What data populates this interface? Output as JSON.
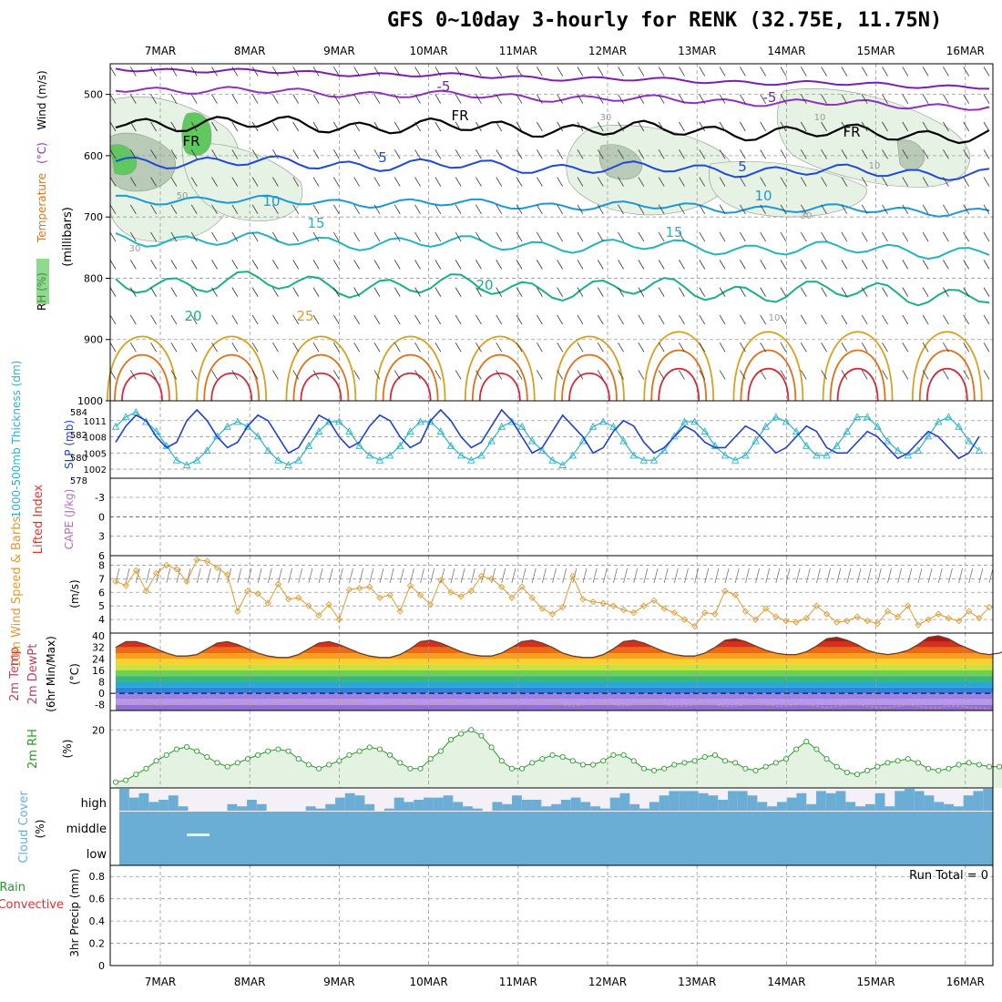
{
  "title": "GFS 0~10day 3-hourly for RENK (32.75E, 11.75N)",
  "dates": [
    "7MAR",
    "8MAR",
    "9MAR",
    "10MAR",
    "11MAR",
    "12MAR",
    "13MAR",
    "14MAR",
    "15MAR",
    "16MAR"
  ],
  "colors": {
    "frame": "#000000",
    "grid": "#9a9a9a",
    "rh_fill": "#e6f2e4",
    "rh_dark": "#b9cbb7",
    "rh_green": "#5fc85f",
    "slp": "#1f3ed8",
    "thickness": "#28b4c8",
    "lifted_index": "#e03030",
    "wind10": "#e09a30",
    "rh2m": "#2a9a2a",
    "cloud": "#6aaed6",
    "cloud_gap": "#f4f0f8"
  },
  "chart_data": [
    {
      "id": "upper",
      "type": "heatmap",
      "ylabel_parts": [
        "RH (%)",
        "Temperature",
        "(°C)",
        "Wind (m/s)"
      ],
      "yunit": "(millibars)",
      "yticks": [
        "500",
        "600",
        "700",
        "800",
        "900",
        "1000"
      ],
      "ylim": [
        450,
        1000
      ],
      "isotherm_labels": [
        "-5",
        "FR",
        "5",
        "10",
        "15",
        "20",
        "25",
        "-5",
        "FR",
        "5",
        "10",
        "15",
        "20"
      ],
      "rh_labels": [
        "30",
        "50",
        "30",
        "10",
        "30",
        "10",
        "10"
      ]
    },
    {
      "id": "slp_thickness",
      "type": "line",
      "ylabel_left": "1000-500mb Thickness (dm)",
      "ylabel_right": "SLP (mb)",
      "yticks_left": [
        "584",
        "582",
        "580",
        "578"
      ],
      "yticks_right": [
        "1011",
        "1008",
        "1005",
        "1002"
      ],
      "series": [
        {
          "name": "SLP (mb)",
          "values": [
            1007,
            1010,
            1012,
            1011,
            1008,
            1006,
            1007,
            1011,
            1013,
            1011,
            1008,
            1006,
            1007,
            1010,
            1012,
            1011,
            1008,
            1005,
            1006,
            1009,
            1012,
            1011,
            1008,
            1006,
            1007,
            1010,
            1012,
            1011,
            1008,
            1006,
            1007,
            1011,
            1013,
            1011,
            1008,
            1006,
            1007,
            1010,
            1013,
            1011,
            1008,
            1005,
            1006,
            1009,
            1012,
            1010,
            1008,
            1005,
            1006,
            1009,
            1011,
            1010,
            1007,
            1005,
            1006,
            1008,
            1010,
            1009,
            1007,
            1006,
            1006,
            1008,
            1010,
            1009,
            1007,
            1005,
            1006,
            1008,
            1010,
            1009,
            1006,
            1005,
            1005,
            1007,
            1009,
            1008,
            1006,
            1004,
            1005,
            1007,
            1009,
            1008,
            1006,
            1004,
            1005,
            1008
          ]
        },
        {
          "name": "1000-500mb Thickness (dm)",
          "values": [
            582.5,
            583.5,
            584,
            583,
            582,
            580.5,
            579,
            578.5,
            579,
            580,
            581.5,
            582.5,
            583,
            582.5,
            581.5,
            580,
            579,
            578.5,
            579,
            580.5,
            582,
            583,
            583,
            582,
            580.5,
            579.5,
            579,
            579.5,
            580.5,
            582,
            583,
            583,
            582,
            580.5,
            579.5,
            579,
            579.5,
            581,
            582.5,
            583,
            582.5,
            581,
            580,
            579,
            578.5,
            579.5,
            581,
            582.5,
            583,
            582.5,
            581,
            579.5,
            579,
            579,
            580,
            581.5,
            583,
            583,
            582,
            580.5,
            579.5,
            579,
            579.5,
            581,
            582.5,
            583.5,
            583,
            582,
            580.5,
            579.5,
            579.5,
            580.5,
            582,
            583.5,
            583.5,
            582.5,
            581,
            580,
            579.5,
            580,
            581.5,
            583,
            583.5,
            582.5,
            581,
            580
          ]
        }
      ]
    },
    {
      "id": "cape_li",
      "type": "line",
      "ylabel_left": "Lifted Index",
      "ylabel_right": "CAPE (J/kg)",
      "yticks": [
        "-3",
        "0",
        "3",
        "6"
      ],
      "series": [
        {
          "name": "Lifted Index",
          "values": []
        }
      ]
    },
    {
      "id": "wind10",
      "type": "line",
      "ylabel": "10m Wind Speed & Barbs",
      "yunit": "(m/s)",
      "yticks": [
        "8",
        "7",
        "6",
        "5",
        "4"
      ],
      "ylim": [
        3,
        8.7
      ],
      "series": [
        {
          "name": "10m Wind Speed",
          "values": [
            6.8,
            6.5,
            7.6,
            6.1,
            7.4,
            8.0,
            7.7,
            6.8,
            8.4,
            8.3,
            7.8,
            7.3,
            4.6,
            6.1,
            5.9,
            5.2,
            6.6,
            5.5,
            5.6,
            5.0,
            4.3,
            5.1,
            4.0,
            6.2,
            6.3,
            6.4,
            5.6,
            5.8,
            4.6,
            6.5,
            5.8,
            5.1,
            6.9,
            6.0,
            5.7,
            6.1,
            7.2,
            7.0,
            6.4,
            5.6,
            6.4,
            5.6,
            4.8,
            4.4,
            4.9,
            7.2,
            5.5,
            5.3,
            5.2,
            5.0,
            4.7,
            4.5,
            5.0,
            5.4,
            4.8,
            4.5,
            4.0,
            3.5,
            4.5,
            4.4,
            6.1,
            5.8,
            4.6,
            4.0,
            4.8,
            4.2,
            3.9,
            3.8,
            4.1,
            5.0,
            4.4,
            3.8,
            3.9,
            4.2,
            3.9,
            3.7,
            4.6,
            4.2,
            5.0,
            3.6,
            4.0,
            4.4,
            4.1,
            3.9,
            4.6,
            4.1,
            4.9
          ]
        }
      ]
    },
    {
      "id": "temp2m",
      "type": "area",
      "ylabel_parts": [
        "2m Temp",
        "2m DewPt",
        "(6hr Min/Max)"
      ],
      "yunit": "(°C)",
      "yticks": [
        "40",
        "32",
        "24",
        "16",
        "8",
        "0",
        "-8"
      ],
      "ylim": [
        -12,
        42
      ],
      "series": [
        {
          "name": "2m Temp",
          "values": [
            32,
            36,
            36,
            34,
            31,
            28,
            26,
            26,
            27,
            31,
            35,
            36,
            34,
            31,
            28,
            26,
            25,
            25,
            27,
            31,
            35,
            36,
            34,
            31,
            28,
            26,
            25,
            25,
            27,
            31,
            36,
            37,
            35,
            32,
            29,
            27,
            26,
            26,
            28,
            32,
            36,
            37,
            35,
            32,
            28,
            26,
            25,
            25,
            27,
            31,
            36,
            37,
            35,
            32,
            29,
            27,
            26,
            26,
            28,
            32,
            37,
            38,
            36,
            33,
            30,
            28,
            27,
            27,
            29,
            33,
            38,
            39,
            37,
            34,
            30,
            28,
            27,
            28,
            30,
            34,
            39,
            40,
            38,
            34,
            31,
            28,
            27,
            28,
            31
          ]
        },
        {
          "name": "2m DewPt",
          "values": [
            -8,
            -7,
            -6,
            -7,
            -8,
            -8,
            -7,
            -6,
            -7,
            -8,
            -8,
            -7,
            -6,
            -7,
            -8,
            -8,
            -7,
            -6,
            -6,
            -7,
            -8,
            -7,
            -6,
            -6,
            -7,
            -8,
            -8,
            -7,
            -6,
            -7,
            -8,
            -8,
            -7,
            -6,
            -7,
            -8,
            -8,
            -7,
            -7,
            -8,
            -8,
            -7,
            -6,
            -7,
            -8,
            -9,
            -8,
            -7,
            -7,
            -8,
            -9,
            -8,
            -7,
            -7,
            -8,
            -9,
            -9,
            -8,
            -7,
            -8,
            -9,
            -9,
            -8,
            -7,
            -8,
            -9,
            -9,
            -8,
            -8,
            -9,
            -10,
            -9,
            -8,
            -8,
            -9,
            -10,
            -10,
            -9,
            -8,
            -9,
            -10,
            -10,
            -9,
            -9,
            -10,
            -10,
            -11
          ]
        }
      ]
    },
    {
      "id": "rh2m",
      "type": "line",
      "ylabel": "2m RH",
      "yunit": "(%)",
      "yticks": [
        "20"
      ],
      "ylim": [
        5,
        25
      ],
      "series": [
        {
          "name": "2m RH",
          "values": [
            6.5,
            7,
            8.5,
            10,
            12,
            13.5,
            15,
            15.6,
            14.5,
            13,
            11.5,
            10.5,
            11.5,
            12.5,
            13.5,
            14.5,
            15,
            14.5,
            12.5,
            11,
            10,
            11,
            12,
            13.5,
            14.5,
            15.5,
            15,
            13.5,
            11.5,
            10,
            10,
            12.5,
            14.5,
            17.5,
            19,
            20,
            18.5,
            15.5,
            12,
            10,
            10,
            11.5,
            12.5,
            13.5,
            13,
            12,
            11,
            11,
            12,
            13.5,
            13.5,
            12,
            10,
            9.5,
            10,
            11,
            11.5,
            12,
            13,
            13.5,
            12,
            11.5,
            10,
            9.5,
            10.5,
            11.5,
            12.5,
            15,
            17,
            15,
            12.5,
            10.5,
            9,
            8.5,
            9.5,
            10.5,
            11.5,
            12,
            12.5,
            11.5,
            10,
            9.5,
            10,
            11,
            11.5,
            11,
            10.5,
            10.5,
            9.5,
            8
          ]
        }
      ]
    },
    {
      "id": "cloud",
      "type": "bar",
      "ylabel": "Cloud Cover",
      "yunit": "(%)",
      "level_labels": [
        "high",
        "middle",
        "low"
      ],
      "series": [
        {
          "name": "high",
          "values": [
            1,
            0.6,
            0.8,
            0.4,
            0.5,
            0.7,
            0.2,
            0,
            0,
            0,
            0,
            0.3,
            0.2,
            0.5,
            0.3,
            0,
            0,
            0,
            0,
            0.2,
            0.1,
            0.3,
            0.6,
            0.8,
            0.7,
            0.3,
            0,
            0.1,
            0.6,
            0.4,
            0.5,
            0.6,
            0.6,
            0.7,
            0.4,
            0.2,
            0.1,
            0,
            0.4,
            0.3,
            0.7,
            0.5,
            0.5,
            0.2,
            0.3,
            0.5,
            0.6,
            0.4,
            0.2,
            0.1,
            0.6,
            0.8,
            0.3,
            0.1,
            0.4,
            0.7,
            0.9,
            0.9,
            0.9,
            0.8,
            0.7,
            0.5,
            0.9,
            0.9,
            0.7,
            0.4,
            0.2,
            0.4,
            0.6,
            0.8,
            0.3,
            0.9,
            0.8,
            0.9,
            0.4,
            0.2,
            0.3,
            0.8,
            0.2,
            0.9,
            1,
            0.9,
            0.7,
            0.4,
            0.3,
            0.2,
            0.7,
            0.9,
            1
          ]
        }
      ]
    },
    {
      "id": "precip",
      "type": "bar",
      "ylabel_left_parts": [
        "Total / Rain",
        "Convective"
      ],
      "ylabel": "3hr Precip (mm)",
      "yticks": [
        "0.8",
        "0.6",
        "0.4",
        "0.2",
        "0"
      ],
      "ylim": [
        0,
        0.9
      ],
      "run_total": "Run Total = 0",
      "series": [
        {
          "name": "Total / Rain",
          "values": []
        }
      ]
    }
  ]
}
